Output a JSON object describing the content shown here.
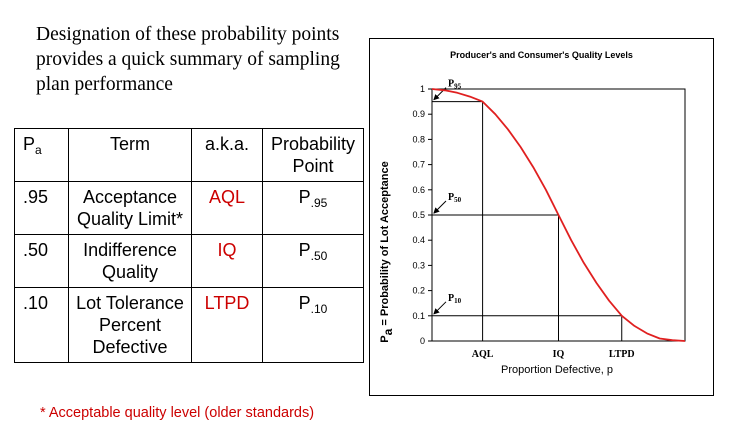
{
  "intro": "Designation of these probability points provides a quick summary of sampling plan performance",
  "table": {
    "headers": {
      "pa_main": "P",
      "pa_sub": "a",
      "term": "Term",
      "aka": "a.k.a.",
      "point": "Probability Point"
    },
    "rows": [
      {
        "pa": ".95",
        "term": "Acceptance Quality Limit*",
        "aka": "AQL",
        "point_main": "P",
        "point_sub": ".95"
      },
      {
        "pa": ".50",
        "term": "Indifference Quality",
        "aka": "IQ",
        "point_main": "P",
        "point_sub": ".50"
      },
      {
        "pa": ".10",
        "term": "Lot Tolerance Percent Defective",
        "aka": "LTPD",
        "point_main": "P",
        "point_sub": ".10"
      }
    ]
  },
  "footnote": "* Acceptable quality level (older standards)",
  "colors": {
    "accent_red": "#cc0000",
    "curve": "#e02020"
  },
  "chart_data": {
    "type": "line",
    "title": "Producer's and Consumer's Quality Levels",
    "xlabel": "Proportion Defective, p",
    "ylabel_main": "P",
    "ylabel_sub": "a",
    "ylabel_rest": " = Probability of Lot Acceptance",
    "ylim": [
      0,
      1
    ],
    "y_ticks": [
      "0",
      "0.1",
      "0.2",
      "0.3",
      "0.4",
      "0.5",
      "0.6",
      "0.7",
      "0.8",
      "0.9",
      "1"
    ],
    "xlim": [
      0,
      1
    ],
    "x_ticks": [
      {
        "label": "AQL",
        "x": 0.2
      },
      {
        "label": "IQ",
        "x": 0.5
      },
      {
        "label": "LTPD",
        "x": 0.75
      }
    ],
    "grid": false,
    "series": [
      {
        "x": [
          0,
          0.05,
          0.1,
          0.15,
          0.2,
          0.25,
          0.3,
          0.35,
          0.4,
          0.45,
          0.5,
          0.55,
          0.6,
          0.65,
          0.7,
          0.75,
          0.8,
          0.85,
          0.9,
          0.95,
          1.0
        ],
        "y": [
          1.0,
          0.995,
          0.985,
          0.97,
          0.95,
          0.9,
          0.84,
          0.77,
          0.69,
          0.6,
          0.5,
          0.4,
          0.31,
          0.23,
          0.16,
          0.1,
          0.06,
          0.03,
          0.01,
          0.003,
          0.0
        ]
      }
    ],
    "points": [
      {
        "label_main": "P",
        "label_sub": "95",
        "x": 0.2,
        "y": 0.95
      },
      {
        "label_main": "P",
        "label_sub": "50",
        "x": 0.5,
        "y": 0.5
      },
      {
        "label_main": "P",
        "label_sub": "10",
        "x": 0.75,
        "y": 0.1
      }
    ]
  }
}
